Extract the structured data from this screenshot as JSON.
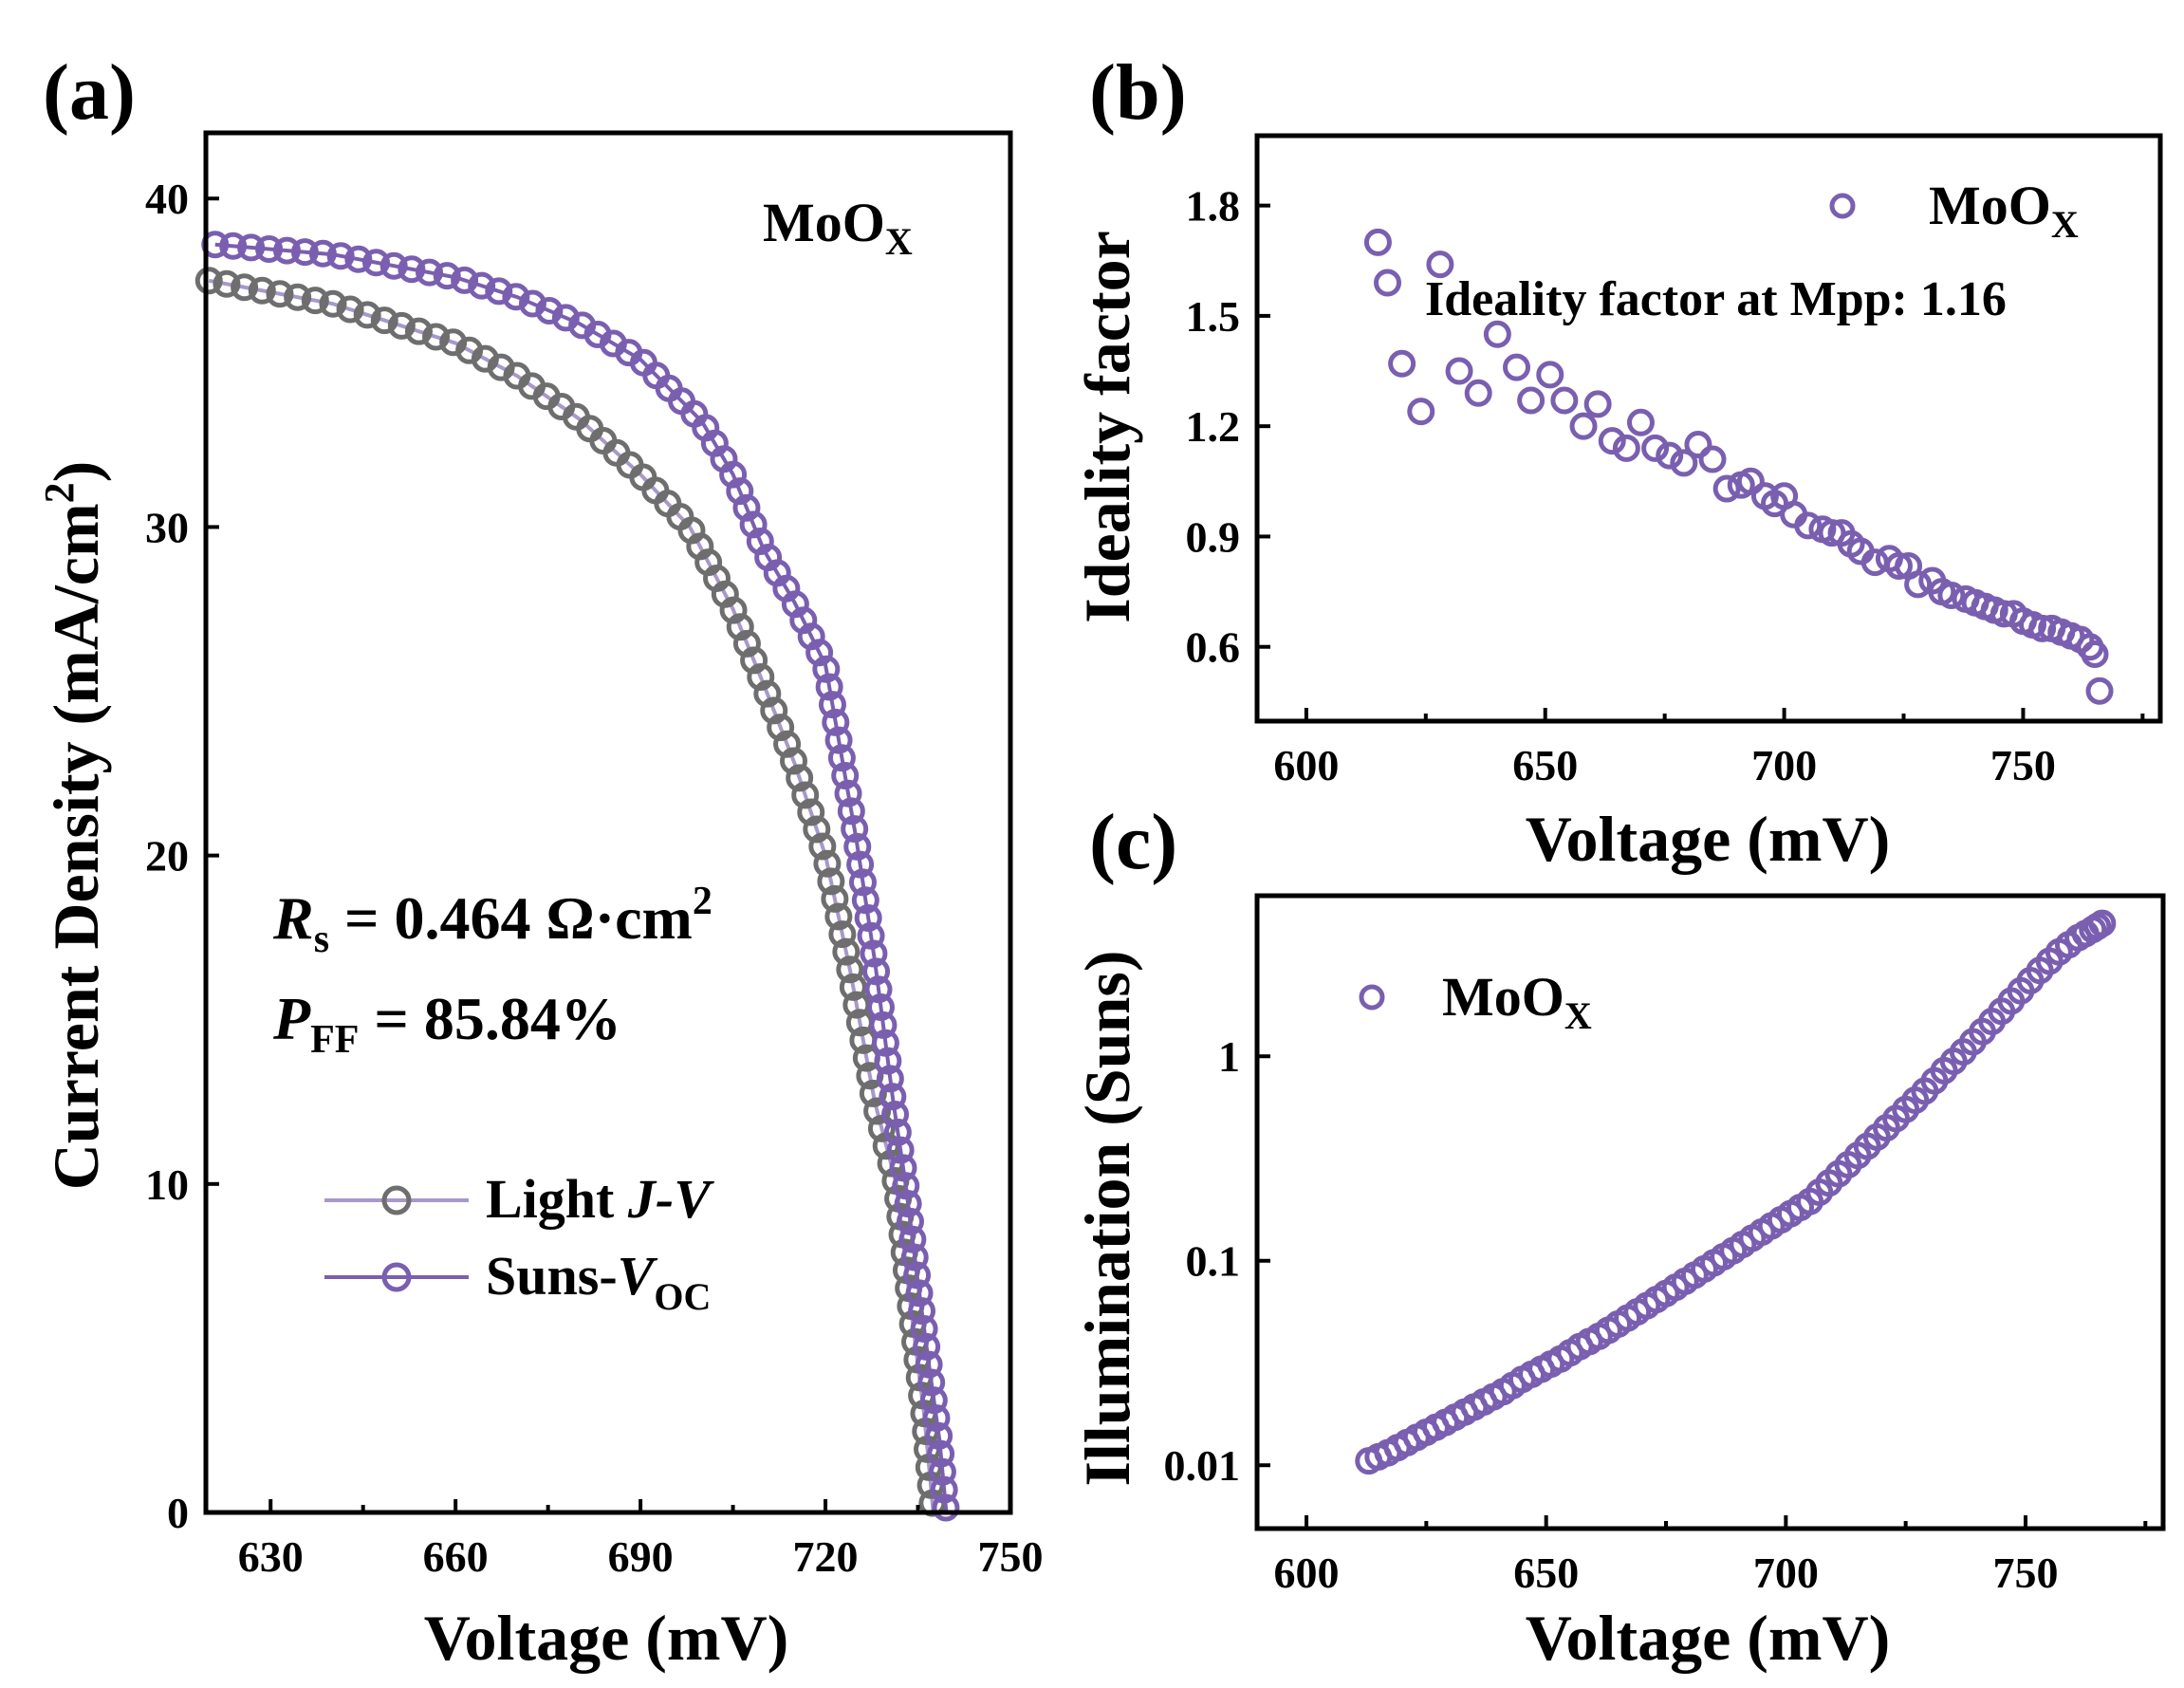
{
  "chart_data": [
    {
      "type": "line",
      "panel_label": "(a)",
      "xlabel": "Voltage (mV)",
      "ylabel": "Current Density (mA/cm²)",
      "ylabel_main": "Current Density (mA/cm",
      "ylabel_sup": "2",
      "ylabel_close": ")",
      "xlim": [
        619.5,
        750
      ],
      "ylim": [
        0,
        42
      ],
      "xticks": [
        630,
        660,
        690,
        720,
        750
      ],
      "yticks": [
        0,
        10,
        20,
        30,
        40
      ],
      "sample_label": "MoO",
      "sample_sub": "X",
      "annotations": {
        "rs_sym": "R",
        "rs_sub": "s",
        "rs_text": " = 0.464 Ω·cm",
        "rs_sup": "2",
        "pff_sym": "P",
        "pff_sub": "FF",
        "pff_text": " = 85.84%"
      },
      "legend": {
        "light_text": "Light ",
        "light_italic": "J-V",
        "suns_text": "Suns-",
        "suns_italic": "V",
        "suns_sub": "OC"
      },
      "series": [
        {
          "name": "Light J-V",
          "color": "#6e6e6e",
          "x": [
            620,
            640,
            660,
            670,
            680,
            690,
            698,
            705,
            710,
            715,
            720,
            724,
            728,
            731.5,
            734,
            736,
            737.5
          ],
          "y": [
            37.5,
            36.8,
            35.6,
            34.6,
            33.3,
            31.6,
            30.0,
            27.5,
            25.2,
            22.8,
            20.0,
            16.5,
            12.5,
            10.0,
            6.0,
            3.0,
            0.0
          ]
        },
        {
          "name": "Suns-VOC",
          "color": "#7a5fb0",
          "x": [
            621,
            640,
            660,
            670,
            680,
            690,
            700,
            705,
            710,
            715,
            720,
            725,
            728,
            731,
            733,
            735,
            737,
            738.5,
            739.6
          ],
          "y": [
            38.6,
            38.3,
            37.6,
            37.0,
            36.2,
            35.1,
            33.2,
            31.6,
            29.3,
            27.7,
            25.8,
            20.5,
            16.8,
            12.5,
            10.0,
            7.0,
            4.2,
            2.2,
            0.0
          ]
        }
      ]
    },
    {
      "type": "scatter",
      "panel_label": "(b)",
      "xlabel": "Voltage (mV)",
      "ylabel": "Ideality factor",
      "xlim": [
        589.7,
        778.7
      ],
      "ylim": [
        0.398,
        1.99
      ],
      "xticks": [
        600,
        650,
        700,
        750
      ],
      "yticks": [
        0.6,
        0.9,
        1.2,
        1.5,
        1.8
      ],
      "ytick_labels": [
        "0.6",
        "0.9",
        "1.2",
        "1.5",
        "1.8"
      ],
      "legend": {
        "label": "MoO",
        "sub": "X"
      },
      "annotation": "Ideality factor at Mpp: 1.16",
      "series": [
        {
          "name": "MoOX",
          "color": "#7a5fb0",
          "x": [
            615,
            617,
            620,
            624,
            628,
            632,
            636,
            640,
            644,
            647,
            651,
            654,
            658,
            661,
            664,
            667,
            670,
            673,
            676,
            679,
            682,
            685,
            688,
            691,
            693,
            696,
            698,
            700,
            702,
            705,
            708,
            710,
            712,
            714,
            716,
            719,
            722,
            724,
            726,
            728,
            731,
            733,
            735,
            738,
            740,
            742,
            744,
            746,
            748,
            750,
            752,
            754,
            756,
            758,
            760,
            762,
            764,
            765,
            766
          ],
          "y": [
            1.7,
            1.59,
            1.37,
            1.24,
            1.64,
            1.35,
            1.29,
            1.45,
            1.36,
            1.27,
            1.34,
            1.27,
            1.2,
            1.26,
            1.16,
            1.14,
            1.21,
            1.14,
            1.12,
            1.1,
            1.15,
            1.11,
            1.03,
            1.04,
            1.05,
            1.01,
            0.99,
            1.01,
            0.96,
            0.93,
            0.92,
            0.91,
            0.91,
            0.88,
            0.86,
            0.83,
            0.84,
            0.82,
            0.82,
            0.77,
            0.78,
            0.75,
            0.74,
            0.73,
            0.72,
            0.71,
            0.7,
            0.69,
            0.69,
            0.67,
            0.66,
            0.65,
            0.65,
            0.64,
            0.63,
            0.62,
            0.6,
            0.58,
            0.48
          ]
        }
      ]
    },
    {
      "type": "scatter",
      "panel_label": "(c)",
      "xlabel": "Voltage (mV)",
      "ylabel": "Illumination (Suns)",
      "yscale": "log",
      "xlim": [
        589.7,
        778.7
      ],
      "ylim": [
        0.0049,
        6.1
      ],
      "xticks": [
        600,
        650,
        700,
        750
      ],
      "yticks": [
        0.01,
        0.1,
        1
      ],
      "ytick_labels": [
        "0.01",
        "0.1",
        "1"
      ],
      "legend": {
        "label": "MoO",
        "sub": "X"
      },
      "series": [
        {
          "name": "MoOX",
          "color": "#7a5fb0",
          "x": [
            613,
            617,
            621,
            625,
            629,
            633,
            637,
            641,
            645,
            649,
            653,
            657,
            661,
            665,
            669,
            673,
            677,
            681,
            685,
            689,
            693,
            697,
            701,
            705,
            709,
            713,
            717,
            721,
            725,
            729,
            733,
            737,
            741,
            745,
            749,
            753,
            757,
            761,
            764,
            766
          ],
          "y": [
            0.0105,
            0.0115,
            0.0129,
            0.0145,
            0.0162,
            0.0182,
            0.0204,
            0.0229,
            0.0263,
            0.0295,
            0.0331,
            0.038,
            0.0427,
            0.049,
            0.0562,
            0.0646,
            0.0741,
            0.0851,
            0.0977,
            0.112,
            0.129,
            0.148,
            0.17,
            0.195,
            0.24,
            0.295,
            0.363,
            0.447,
            0.55,
            0.676,
            0.851,
            1.05,
            1.32,
            1.66,
            2.09,
            2.63,
            3.24,
            3.8,
            4.17,
            4.47
          ]
        }
      ]
    }
  ]
}
